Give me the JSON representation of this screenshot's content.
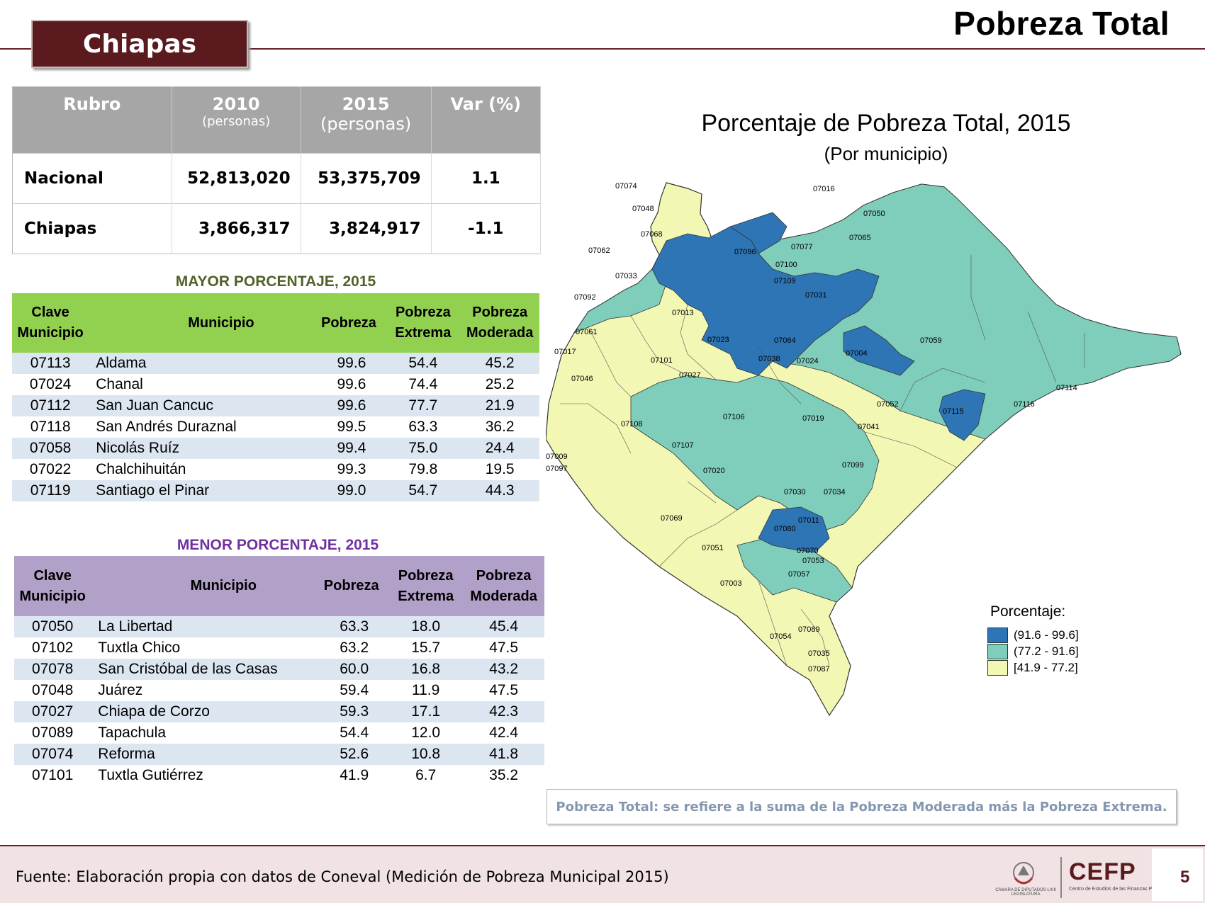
{
  "header": {
    "state": "Chiapas",
    "title": "Pobreza Total"
  },
  "summary": {
    "headers": {
      "rubro": "Rubro",
      "y2010": "2010",
      "y2010_sub": "(personas)",
      "y2015": "2015",
      "y2015_sub": "(personas)",
      "var": "Var (%)"
    },
    "rows": [
      {
        "name": "Nacional",
        "v2010": "52,813,020",
        "v2015": "53,375,709",
        "var": "1.1"
      },
      {
        "name": "Chiapas",
        "v2010": "3,866,317",
        "v2015": "3,824,917",
        "var": "-1.1"
      }
    ]
  },
  "mayor": {
    "title": "MAYOR PORCENTAJE, 2015",
    "color": "#92d050",
    "title_color": "#4f6228",
    "headers": {
      "clave": "Clave\nMunicipio",
      "municipio": "Municipio",
      "pobreza": "Pobreza",
      "extrema": "Pobreza\nExtrema",
      "moderada": "Pobreza\nModerada"
    },
    "rows": [
      {
        "clave": "07113",
        "municipio": "Aldama",
        "pobreza": "99.6",
        "extrema": "54.4",
        "moderada": "45.2"
      },
      {
        "clave": "07024",
        "municipio": "Chanal",
        "pobreza": "99.6",
        "extrema": "74.4",
        "moderada": "25.2"
      },
      {
        "clave": "07112",
        "municipio": "San Juan Cancuc",
        "pobreza": "99.6",
        "extrema": "77.7",
        "moderada": "21.9"
      },
      {
        "clave": "07118",
        "municipio": "San Andrés Duraznal",
        "pobreza": "99.5",
        "extrema": "63.3",
        "moderada": "36.2"
      },
      {
        "clave": "07058",
        "municipio": "Nicolás Ruíz",
        "pobreza": "99.4",
        "extrema": "75.0",
        "moderada": "24.4"
      },
      {
        "clave": "07022",
        "municipio": "Chalchihuitán",
        "pobreza": "99.3",
        "extrema": "79.8",
        "moderada": "19.5"
      },
      {
        "clave": "07119",
        "municipio": "Santiago el Pinar",
        "pobreza": "99.0",
        "extrema": "54.7",
        "moderada": "44.3"
      }
    ]
  },
  "menor": {
    "title": "MENOR PORCENTAJE, 2015",
    "color": "#b1a0c7",
    "title_color": "#7030a0",
    "headers": {
      "clave": "Clave\nMunicipio",
      "municipio": "Municipio",
      "pobreza": "Pobreza",
      "extrema": "Pobreza\nExtrema",
      "moderada": "Pobreza\nModerada"
    },
    "rows": [
      {
        "clave": "07050",
        "municipio": "La Libertad",
        "pobreza": "63.3",
        "extrema": "18.0",
        "moderada": "45.4"
      },
      {
        "clave": "07102",
        "municipio": "Tuxtla Chico",
        "pobreza": "63.2",
        "extrema": "15.7",
        "moderada": "47.5"
      },
      {
        "clave": "07078",
        "municipio": "San Cristóbal de las Casas",
        "pobreza": "60.0",
        "extrema": "16.8",
        "moderada": "43.2"
      },
      {
        "clave": "07048",
        "municipio": "Juárez",
        "pobreza": "59.4",
        "extrema": "11.9",
        "moderada": "47.5"
      },
      {
        "clave": "07027",
        "municipio": "Chiapa de Corzo",
        "pobreza": "59.3",
        "extrema": "17.1",
        "moderada": "42.3"
      },
      {
        "clave": "07089",
        "municipio": "Tapachula",
        "pobreza": "54.4",
        "extrema": "12.0",
        "moderada": "42.4"
      },
      {
        "clave": "07074",
        "municipio": "Reforma",
        "pobreza": "52.6",
        "extrema": "10.8",
        "moderada": "41.8"
      },
      {
        "clave": "07101",
        "municipio": "Tuxtla Gutiérrez",
        "pobreza": "41.9",
        "extrema": "6.7",
        "moderada": "35.2"
      }
    ]
  },
  "map": {
    "title": "Porcentaje de Pobreza Total, 2015",
    "subtitle": "(Por municipio)",
    "legend_title": "Porcentaje:",
    "classes": [
      {
        "label": "(91.6 - 99.6]",
        "color": "#2e75b6"
      },
      {
        "label": "(77.2 - 91.6]",
        "color": "#7fcdbb"
      },
      {
        "label": "[41.9 - 77.2]",
        "color": "#f2f7b4"
      }
    ],
    "municipio_labels": [
      "07074",
      "07048",
      "07016",
      "07050",
      "07065",
      "07068",
      "07062",
      "07077",
      "07096",
      "07100",
      "07031",
      "07092",
      "07109",
      "07059",
      "07061",
      "07017",
      "07046",
      "07004",
      "07114",
      "07116",
      "07052",
      "07115",
      "07041",
      "07108",
      "07107",
      "07106",
      "07019",
      "07020",
      "07099",
      "07030",
      "07034",
      "07069",
      "07080",
      "07051",
      "07057",
      "07003",
      "07054",
      "07087",
      "07009",
      "07097",
      "07089",
      "07035",
      "07101",
      "07027",
      "07064",
      "07038",
      "07024",
      "07013",
      "07033",
      "07023",
      "07070",
      "07011",
      "07053"
    ]
  },
  "note": "Pobreza Total: se refiere a la suma de la Pobreza Moderada más la Pobreza Extrema.",
  "footer": {
    "source": "Fuente: Elaboración propia con datos de Coneval (Medición de Pobreza Municipal 2015)",
    "page": "5",
    "logo_camara": "CÁMARA DE DIPUTADOS LXIII LEGISLATURA",
    "logo_cefp": "CEFP",
    "logo_cefp_sub": "Centro de Estudios de las Finanzas Públicas"
  }
}
